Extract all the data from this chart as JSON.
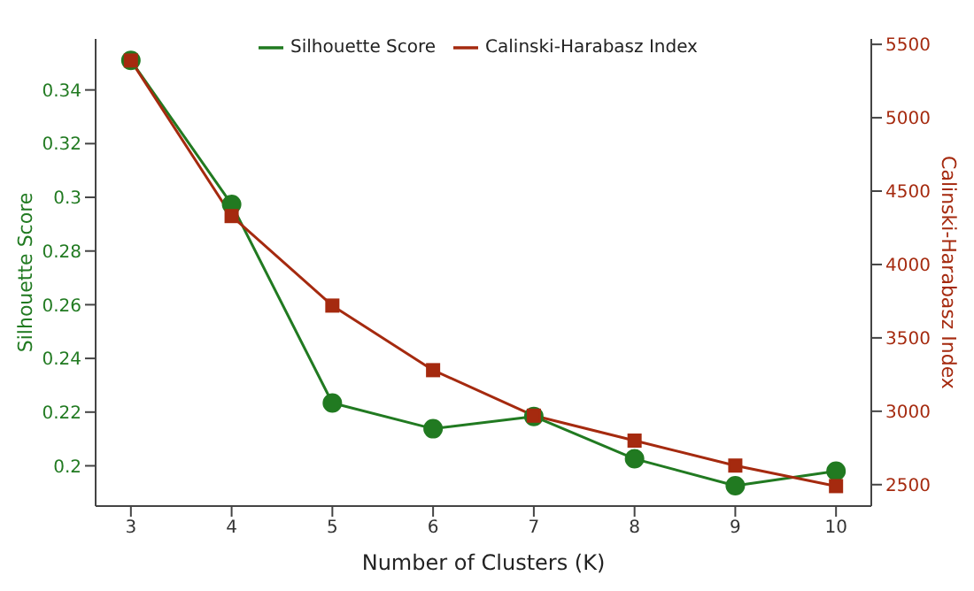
{
  "chart_data": {
    "type": "line",
    "xlabel": "Number of Clusters (K)",
    "ylabel": "Silhouette Score",
    "y2label": "Calinski-Harabasz Index",
    "x": [
      3,
      4,
      5,
      6,
      7,
      8,
      9,
      10
    ],
    "series": [
      {
        "name": "Silhouette Score",
        "color": "#217a21",
        "marker": "circle",
        "values": [
          0.351,
          0.2974,
          0.2234,
          0.2138,
          0.2184,
          0.2026,
          0.1926,
          0.198
        ]
      },
      {
        "name": "Calinski-Harabasz Index",
        "color": "#a52a0f",
        "marker": "square",
        "axis": "y2",
        "values": [
          5390,
          4330,
          3720,
          3280,
          2970,
          2800,
          2630,
          2490
        ]
      }
    ],
    "xlim": [
      2.65,
      10.35
    ],
    "xticks": [
      3,
      4,
      5,
      6,
      7,
      8,
      9,
      10
    ],
    "ylim": [
      0.185,
      0.359
    ],
    "yticks": [
      0.2,
      0.22,
      0.24,
      0.26,
      0.28,
      0.3,
      0.32,
      0.34
    ],
    "y2lim": [
      2354,
      5537
    ],
    "y2ticks": [
      2500,
      3000,
      3500,
      4000,
      4500,
      5000,
      5500
    ],
    "grid": false,
    "legend": "top",
    "line_style": "solid"
  }
}
